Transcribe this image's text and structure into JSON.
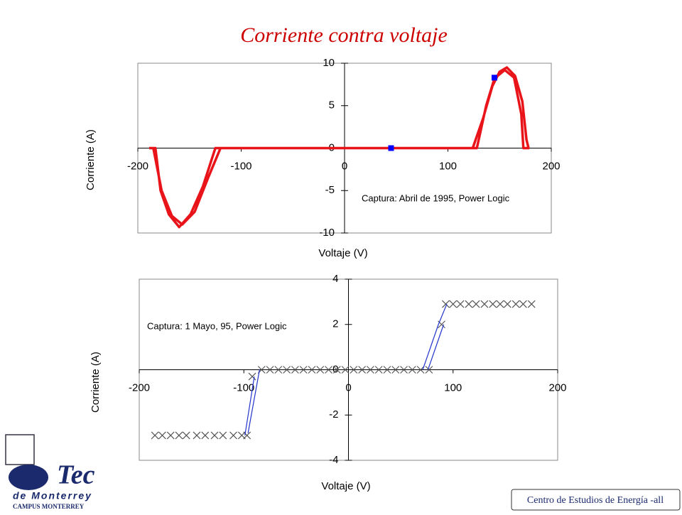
{
  "title": "Corriente contra voltaje",
  "chart_data": [
    {
      "type": "line",
      "xlabel": "Voltaje (V)",
      "ylabel": "Corriente (A)",
      "annotation": "Captura:  Abril de 1995, Power Logic",
      "xlim": [
        -200,
        200
      ],
      "xticks": [
        -200,
        -100,
        0,
        100,
        200
      ],
      "ylim": [
        -10,
        10
      ],
      "yticks": [
        -10,
        -5,
        0,
        5,
        10
      ],
      "series": [
        {
          "color": "#e8141a",
          "mode": "lines",
          "x": [
            -189,
            -183,
            -178,
            -170,
            -160,
            -149,
            -137,
            -125,
            124,
            134,
            143,
            150,
            157,
            165,
            172,
            176,
            178,
            173,
            171,
            164,
            155,
            145,
            137,
            128,
            -120,
            -132,
            -145,
            -157,
            -167,
            -177,
            -185,
            -189
          ],
          "values": [
            0,
            0,
            -5,
            -7.8,
            -9.3,
            -7.8,
            -4.5,
            0,
            0,
            3.5,
            7.3,
            9,
            9.5,
            8.5,
            5.5,
            1,
            0,
            0,
            4,
            8.3,
            9.2,
            8.2,
            5,
            0,
            0,
            -3.5,
            -7.5,
            -9,
            -8,
            -5,
            0,
            0
          ]
        },
        {
          "color": "#0000ff",
          "mode": "squares",
          "x": [
            45,
            145
          ],
          "values": [
            0,
            8.3
          ]
        }
      ]
    },
    {
      "type": "line",
      "xlabel": "Voltaje (V)",
      "ylabel": "Corriente (A)",
      "annotation": "Captura:  1 Mayo, 95, Power Logic",
      "xlim": [
        -200,
        200
      ],
      "xticks": [
        -200,
        -100,
        0,
        100,
        200
      ],
      "ylim": [
        -4,
        4
      ],
      "yticks": [
        -4,
        -2,
        0,
        2,
        4
      ],
      "series": [
        {
          "color": "#555555",
          "mode": "crosses",
          "x": [
            -185,
            -178,
            -170,
            -162,
            -155,
            -145,
            -137,
            -128,
            -120,
            -110,
            -102,
            -97,
            -92,
            -83,
            -75,
            -67,
            -59,
            -51,
            -43,
            -35,
            -27,
            -19,
            -11,
            -3,
            5,
            13,
            21,
            29,
            37,
            45,
            53,
            61,
            69,
            77,
            89,
            93,
            100,
            107,
            115,
            122,
            130,
            138,
            145,
            152,
            160,
            167,
            175
          ],
          "values": [
            -2.9,
            -2.9,
            -2.9,
            -2.9,
            -2.9,
            -2.9,
            -2.9,
            -2.9,
            -2.9,
            -2.9,
            -2.9,
            -2.9,
            -0.3,
            0,
            0,
            0,
            0,
            0,
            0,
            0,
            0,
            0,
            0,
            0,
            0,
            0,
            0,
            0,
            0,
            0,
            0,
            0,
            0,
            0,
            2,
            2.9,
            2.9,
            2.9,
            2.9,
            2.9,
            2.9,
            2.9,
            2.9,
            2.9,
            2.9,
            2.9,
            2.9
          ]
        },
        {
          "color": "#2233cc",
          "mode": "lines",
          "x": [
            -99,
            -90,
            null,
            -96,
            -85,
            null,
            71,
            86,
            94,
            null,
            76,
            91
          ],
          "values": [
            -2.9,
            -0.3,
            null,
            -2.8,
            0,
            null,
            0,
            2,
            2.9,
            null,
            0,
            2
          ]
        }
      ]
    }
  ],
  "logo": {
    "name": "Tec",
    "line2": "de Monterrey",
    "line3": "CAMPUS MONTERREY"
  },
  "footer": "Centro de Estudios de Energía -all"
}
